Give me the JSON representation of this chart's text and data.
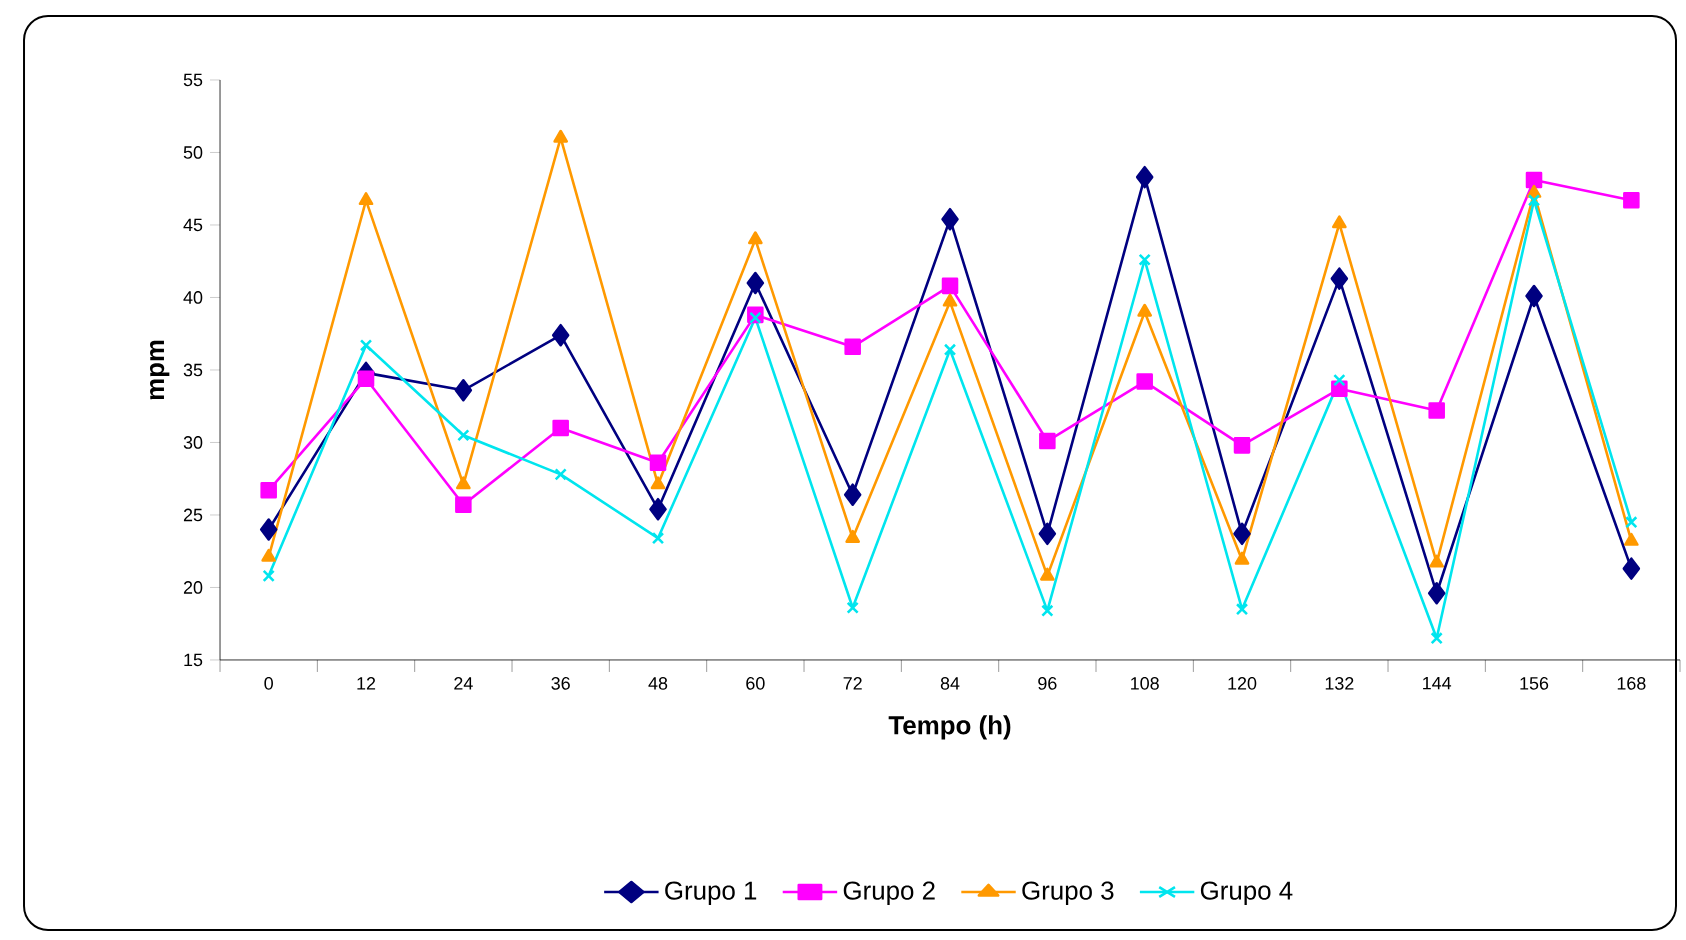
{
  "chart_data": {
    "type": "line",
    "xlabel": "Tempo (h)",
    "ylabel": "mpm",
    "categories": [
      "0",
      "12",
      "24",
      "36",
      "48",
      "60",
      "72",
      "84",
      "96",
      "108",
      "120",
      "132",
      "144",
      "156",
      "168"
    ],
    "ylim": [
      15,
      55
    ],
    "yticks": [
      15,
      20,
      25,
      30,
      35,
      40,
      45,
      50,
      55
    ],
    "grid": false,
    "legend": "bottom",
    "series": [
      {
        "name": "Grupo 1",
        "color": "#000080",
        "marker": "diamond",
        "values": [
          24,
          34.8,
          33.6,
          37.4,
          25.4,
          41,
          26.4,
          45.4,
          23.7,
          48.3,
          23.7,
          41.3,
          19.6,
          40.1,
          21.3
        ]
      },
      {
        "name": "Grupo 2",
        "color": "#ff00ff",
        "marker": "square",
        "values": [
          26.7,
          34.4,
          25.7,
          31,
          28.6,
          38.8,
          36.6,
          40.8,
          30.1,
          34.2,
          29.8,
          33.7,
          32.2,
          48.1,
          46.7
        ]
      },
      {
        "name": "Grupo 3",
        "color": "#ff9900",
        "marker": "triangle",
        "values": [
          22.1,
          46.7,
          27.1,
          51,
          27.1,
          44,
          23.4,
          39.7,
          20.8,
          39,
          21.9,
          45.1,
          21.7,
          47.2,
          23.2
        ]
      },
      {
        "name": "Grupo 4",
        "color": "#00e5ee",
        "marker": "cross",
        "values": [
          20.8,
          36.7,
          30.5,
          27.8,
          23.4,
          38.6,
          18.6,
          36.4,
          18.4,
          42.6,
          18.5,
          34.3,
          16.5,
          46.7,
          24.5
        ]
      }
    ]
  }
}
